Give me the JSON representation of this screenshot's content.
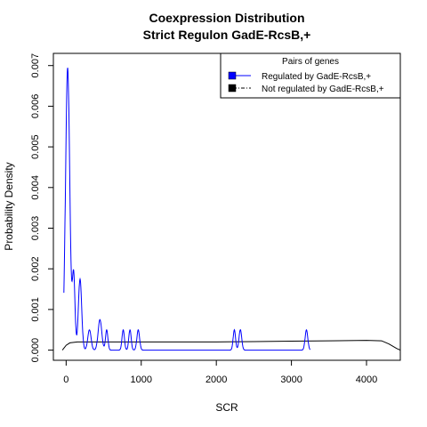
{
  "chart_data": {
    "type": "line",
    "title": "Coexpression Distribution",
    "subtitle": "Strict Regulon GadE-RcsB,+",
    "xlabel": "SCR",
    "ylabel": "Probability Density",
    "xlim": [
      -170,
      4450
    ],
    "ylim": [
      -0.00025,
      0.0073
    ],
    "x_ticks": [
      0,
      1000,
      2000,
      3000,
      4000
    ],
    "y_ticks": [
      0.0,
      0.001,
      0.002,
      0.003,
      0.004,
      0.005,
      0.006,
      0.007
    ],
    "y_tick_labels": [
      "0.000",
      "0.001",
      "0.002",
      "0.003",
      "0.004",
      "0.005",
      "0.006",
      "0.007"
    ],
    "grid": false,
    "legend": {
      "title": "Pairs of genes",
      "placement": "top-right"
    },
    "series": [
      {
        "name": "Regulated by  GadE-RcsB,+",
        "color": "#0000ff",
        "peaks": [
          {
            "x": 20,
            "height": 0.00695,
            "width": 28
          },
          {
            "x": 100,
            "height": 0.00185,
            "width": 18
          },
          {
            "x": 185,
            "height": 0.00175,
            "width": 22
          },
          {
            "x": 310,
            "height": 0.0005,
            "width": 22
          },
          {
            "x": 450,
            "height": 0.00075,
            "width": 24
          },
          {
            "x": 540,
            "height": 0.0005,
            "width": 16
          },
          {
            "x": 760,
            "height": 0.0005,
            "width": 16
          },
          {
            "x": 850,
            "height": 0.0005,
            "width": 16
          },
          {
            "x": 960,
            "height": 0.0005,
            "width": 18
          },
          {
            "x": 2240,
            "height": 0.0005,
            "width": 16
          },
          {
            "x": 2320,
            "height": 0.0005,
            "width": 18
          },
          {
            "x": 3200,
            "height": 0.0005,
            "width": 18
          }
        ],
        "x_range": [
          -30,
          3250
        ]
      },
      {
        "name": "Not regulated by  GadE-RcsB,+",
        "color": "#000000",
        "points": [
          [
            -50,
            0.0
          ],
          [
            0,
            0.00012
          ],
          [
            50,
            0.00018
          ],
          [
            150,
            0.0002
          ],
          [
            600,
            0.0002
          ],
          [
            1200,
            0.0002
          ],
          [
            2000,
            0.0002
          ],
          [
            2500,
            0.00021
          ],
          [
            3000,
            0.00022
          ],
          [
            3500,
            0.00023
          ],
          [
            4000,
            0.00024
          ],
          [
            4200,
            0.00023
          ],
          [
            4300,
            0.00015
          ],
          [
            4400,
            4e-05
          ],
          [
            4450,
            0.0
          ]
        ]
      }
    ]
  }
}
